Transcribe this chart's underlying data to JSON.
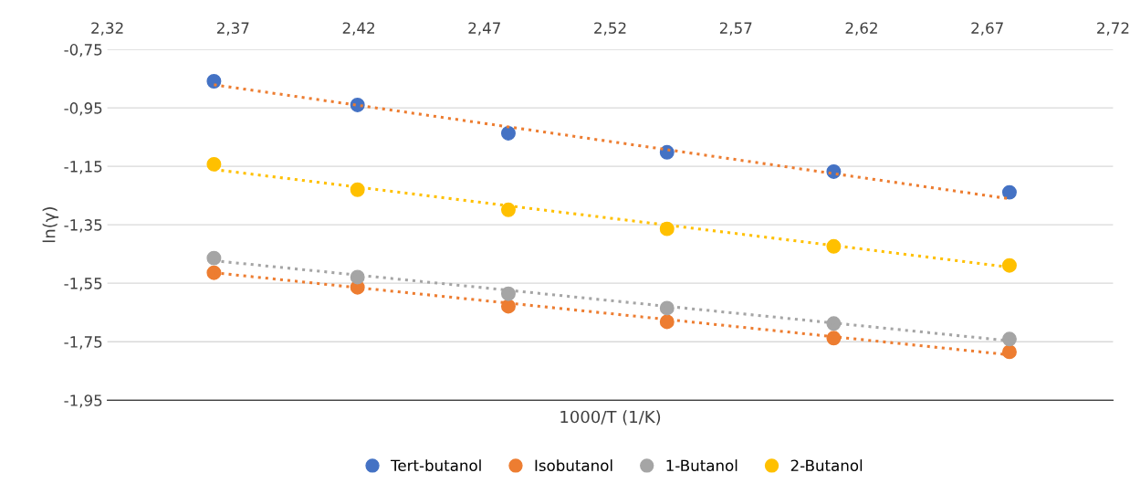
{
  "chart_data": {
    "type": "scatter",
    "xlabel": "1000/T (1/K)",
    "ylabel": "ln(γ)",
    "x": [
      2.3624,
      2.4195,
      2.4795,
      2.5426,
      2.6089,
      2.6788
    ],
    "series": [
      {
        "name": "Tert-butanol",
        "color": "#4472c4",
        "values": [
          -0.859,
          -0.94,
          -1.037,
          -1.102,
          -1.168,
          -1.239
        ]
      },
      {
        "name": "Isobutanol",
        "color": "#ed7d31",
        "values": [
          -1.514,
          -1.564,
          -1.629,
          -1.682,
          -1.738,
          -1.785
        ]
      },
      {
        "name": "1-Butanol",
        "color": "#a5a5a5",
        "values": [
          -1.464,
          -1.529,
          -1.586,
          -1.635,
          -1.688,
          -1.741
        ]
      },
      {
        "name": "2-Butanol",
        "color": "#ffc000",
        "values": [
          -1.143,
          -1.23,
          -1.299,
          -1.364,
          -1.424,
          -1.489
        ]
      },
      {
        "type": "line",
        "color": "#ed7d31",
        "line_style": "dotted",
        "marker": "none",
        "values": [
          -0.871,
          -0.941,
          -1.015,
          -1.093,
          -1.175,
          -1.261
        ]
      },
      {
        "type": "line",
        "color": "#ed7d31",
        "line_style": "dotted",
        "marker": "none",
        "values": [
          -1.514,
          -1.565,
          -1.618,
          -1.674,
          -1.733,
          -1.795
        ]
      },
      {
        "type": "line",
        "color": "#a5a5a5",
        "line_style": "dotted",
        "marker": "none",
        "values": [
          -1.473,
          -1.522,
          -1.574,
          -1.629,
          -1.686,
          -1.747
        ]
      },
      {
        "type": "line",
        "color": "#ffc000",
        "line_style": "dotted",
        "marker": "none",
        "values": [
          -1.161,
          -1.221,
          -1.285,
          -1.351,
          -1.421,
          -1.495
        ]
      }
    ],
    "xlim": [
      2.32,
      2.72
    ],
    "xticks": [
      {
        "value": 2.32,
        "label": "2,32"
      },
      {
        "value": 2.37,
        "label": "2,37"
      },
      {
        "value": 2.42,
        "label": "2,42"
      },
      {
        "value": 2.47,
        "label": "2,47"
      },
      {
        "value": 2.52,
        "label": "2,52"
      },
      {
        "value": 2.57,
        "label": "2,57"
      },
      {
        "value": 2.62,
        "label": "2,62"
      },
      {
        "value": 2.67,
        "label": "2,67"
      },
      {
        "value": 2.72,
        "label": "2,72"
      }
    ],
    "ylim": [
      -1.95,
      -0.75
    ],
    "yticks": [
      {
        "value": -1.95,
        "label": "-1,95"
      },
      {
        "value": -1.75,
        "label": "-1,75"
      },
      {
        "value": -1.55,
        "label": "-1,55"
      },
      {
        "value": -1.35,
        "label": "-1,35"
      },
      {
        "value": -1.15,
        "label": "-1,15"
      },
      {
        "value": -0.95,
        "label": "-0,95"
      },
      {
        "value": -0.75,
        "label": "-0,75"
      }
    ],
    "grid": "y",
    "legend": "bottom",
    "marker": "circle"
  }
}
